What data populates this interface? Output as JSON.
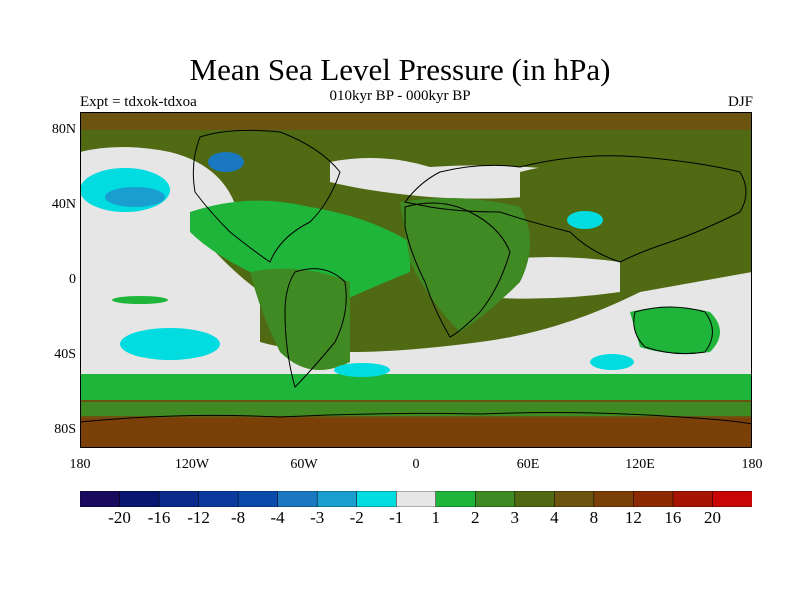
{
  "title": "Mean Sea Level Pressure (in hPa)",
  "subtitle": "010kyr BP - 000kyr BP",
  "left_label": "Expt = tdxok-tdxoa",
  "right_label": "DJF",
  "y_ticks": [
    "80N",
    "40N",
    "0",
    "40S",
    "80S"
  ],
  "x_ticks": [
    "180",
    "120W",
    "60W",
    "0",
    "60E",
    "120E",
    "180"
  ],
  "colorbar": {
    "colors": [
      "#1a0a5e",
      "#0a1770",
      "#0c2a8c",
      "#0a3a9e",
      "#0a4aaa",
      "#1a78c0",
      "#1a9ed0",
      "#00dce0",
      "#e6e6e6",
      "#1fb53a",
      "#3f8a22",
      "#4f6a12",
      "#6b5410",
      "#7a4008",
      "#8c2a04",
      "#a81404",
      "#c80606"
    ],
    "labels": [
      "-20",
      "-16",
      "-12",
      "-8",
      "-4",
      "-3",
      "-2",
      "-1",
      "1",
      "2",
      "3",
      "4",
      "8",
      "12",
      "16",
      "20"
    ]
  },
  "legend_colors": {
    "neutral": "#e6e6e6",
    "light_green": "#1fb53a",
    "mid_green": "#3f8a22",
    "olive": "#4f6a12",
    "brown": "#6b5410",
    "cyan": "#00dce0",
    "blue": "#1a78c0"
  }
}
